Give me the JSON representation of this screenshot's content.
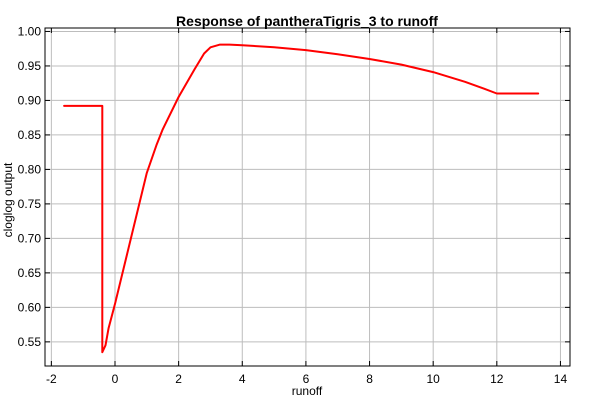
{
  "chart_data": {
    "type": "line",
    "title": "Response of pantheraTigris_3 to runoff",
    "xlabel": "runoff",
    "ylabel": "cloglog output",
    "xlim": [
      -2.2,
      14.3
    ],
    "ylim": [
      0.515,
      1.005
    ],
    "xticks": [
      -2,
      0,
      2,
      4,
      6,
      8,
      10,
      12,
      14
    ],
    "yticks": [
      0.55,
      0.6,
      0.65,
      0.7,
      0.75,
      0.8,
      0.85,
      0.9,
      0.95,
      1.0
    ],
    "xtick_labels": [
      "-2",
      "0",
      "2",
      "4",
      "6",
      "8",
      "10",
      "12",
      "14"
    ],
    "ytick_labels": [
      "0.55",
      "0.60",
      "0.65",
      "0.70",
      "0.75",
      "0.80",
      "0.85",
      "0.90",
      "0.95",
      "1.00"
    ],
    "grid": true,
    "legend": "none",
    "series": [
      {
        "color": "#ff0000",
        "x": [
          -1.6,
          -0.4,
          -0.4,
          -0.3,
          -0.2,
          0.0,
          0.5,
          1.0,
          1.3,
          1.5,
          2.0,
          2.5,
          2.8,
          3.0,
          3.3,
          3.6,
          4.0,
          5.0,
          6.0,
          7.0,
          8.0,
          9.0,
          10.0,
          11.0,
          11.6,
          12.0,
          12.2,
          13.0,
          13.3
        ],
        "y": [
          0.892,
          0.892,
          0.535,
          0.545,
          0.57,
          0.605,
          0.7,
          0.795,
          0.835,
          0.858,
          0.905,
          0.945,
          0.968,
          0.977,
          0.981,
          0.981,
          0.98,
          0.977,
          0.973,
          0.967,
          0.96,
          0.952,
          0.941,
          0.927,
          0.917,
          0.91,
          0.91,
          0.91,
          0.91
        ]
      }
    ]
  }
}
